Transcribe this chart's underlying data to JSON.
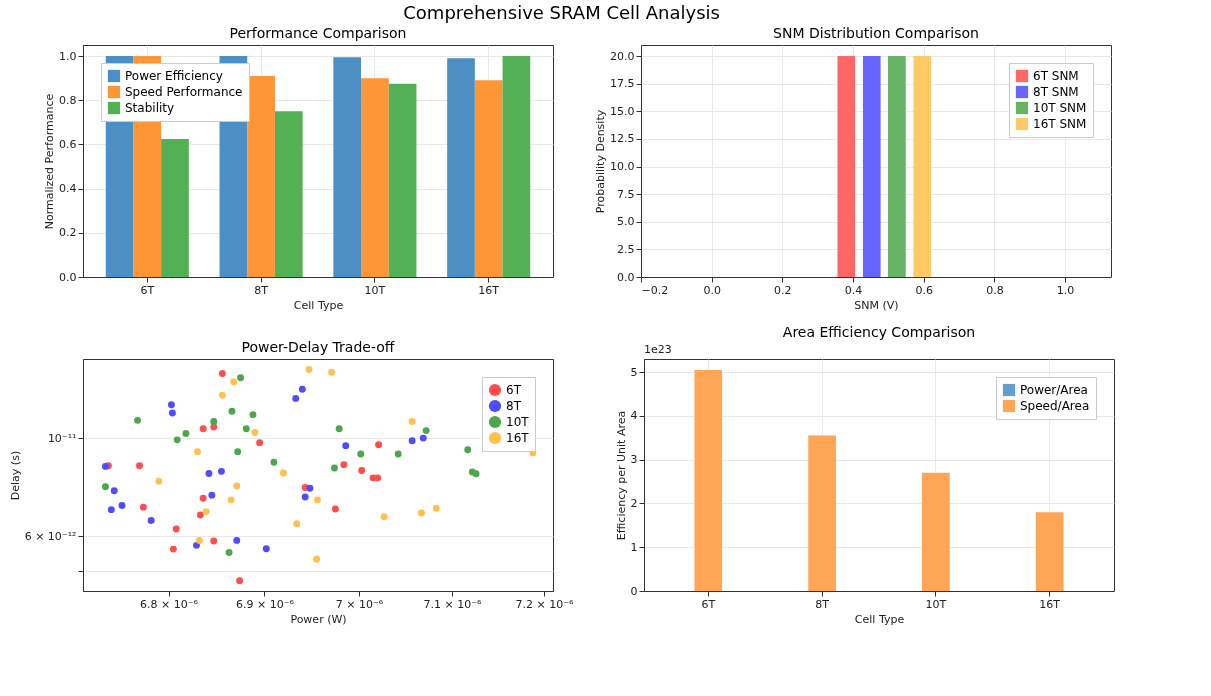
{
  "chart_data": [
    {
      "type": "bar",
      "title": "Performance Comparison",
      "xlabel": "Cell Type",
      "ylabel": "Normalized Performance",
      "categories": [
        "6T",
        "8T",
        "10T",
        "16T"
      ],
      "series": [
        {
          "name": "Power Efficiency",
          "color": "#4b8fc4",
          "values": [
            1.0,
            1.0,
            0.995,
            0.99
          ]
        },
        {
          "name": "Speed Performance",
          "color": "#fe9537",
          "values": [
            1.0,
            0.91,
            0.9,
            0.89
          ]
        },
        {
          "name": "Stability",
          "color": "#53b054",
          "values": [
            0.625,
            0.75,
            0.875,
            1.0
          ]
        }
      ],
      "ylim": [
        0,
        1.05
      ],
      "yticks": [
        {
          "value": 0,
          "label": "0.0"
        },
        0.2,
        0.4,
        0.6,
        0.8,
        {
          "value": 1,
          "label": "1.0"
        }
      ],
      "grid": true,
      "legend": "top left",
      "annotations": [
        "Comprehensive SRAM Cell Analysis"
      ]
    },
    {
      "type": "bar",
      "title": "SNM Distribution Comparison",
      "xlabel": "SNM (V)",
      "ylabel": "Probability Density",
      "series": [
        {
          "name": "6T SNM",
          "color": "#ff6666",
          "x": [
            0.381
          ],
          "values": [
            20
          ]
        },
        {
          "name": "8T SNM",
          "color": "#6666ff",
          "x": [
            0.453
          ],
          "values": [
            20
          ]
        },
        {
          "name": "10T SNM",
          "color": "#66b366",
          "x": [
            0.524
          ],
          "values": [
            20
          ]
        },
        {
          "name": "16T SNM",
          "color": "#ffc966",
          "x": [
            0.596
          ],
          "values": [
            20
          ]
        }
      ],
      "xlim": [
        -0.2,
        1.13
      ],
      "xticks": [
        {
          "value": -0.2,
          "label": "−0.2"
        },
        {
          "value": 0,
          "label": "0.0"
        },
        0.2,
        0.4,
        0.6,
        0.8,
        {
          "value": 1,
          "label": "1.0"
        }
      ],
      "ylim": [
        0,
        21
      ],
      "yticks": [
        {
          "value": 0,
          "label": "0.0"
        },
        2.5,
        {
          "value": 5,
          "label": "5.0"
        },
        7.5,
        {
          "value": 10,
          "label": "10.0"
        },
        12.5,
        {
          "value": 15,
          "label": "15.0"
        },
        17.5,
        {
          "value": 20,
          "label": "20.0"
        }
      ],
      "grid": true,
      "legend": "top right"
    },
    {
      "type": "scatter",
      "title": "Power-Delay Trade-off",
      "xlabel": "Power (W)",
      "ylabel": "Delay (s)",
      "log": "xy",
      "marker": "circle",
      "series": [
        {
          "name": "6T",
          "color": "#ff4d4d",
          "x": [
            6.738e-06,
            6.77e-06,
            6.856e-06,
            6.836e-06,
            6.847e-06,
            6.895e-06,
            6.774e-06,
            6.836e-06,
            6.833e-06,
            6.808e-06,
            6.805e-06,
            6.847e-06,
            6.874e-06,
            6.943e-06,
            6.984e-06,
            6.975e-06,
            7.003e-06,
            7.015e-06,
            7.02e-06,
            7.021e-06
          ],
          "values": [
            8.66e-12,
            8.66e-12,
            1.4e-11,
            1.05e-11,
            1.06e-11,
            9.76e-12,
            6.98e-12,
            7.31e-12,
            6.7e-12,
            6.23e-12,
            5.61e-12,
            5.85e-12,
            4.76e-12,
            7.73e-12,
            8.71e-12,
            6.91e-12,
            8.45e-12,
            8.13e-12,
            8.13e-12,
            9.66e-12
          ]
        },
        {
          "name": "8T",
          "color": "#4d4dff",
          "x": [
            6.735e-06,
            6.744e-06,
            6.741e-06,
            6.752e-06,
            6.782e-06,
            6.803e-06,
            6.804e-06,
            6.842e-06,
            6.855e-06,
            6.845e-06,
            6.829e-06,
            6.871e-06,
            6.902e-06,
            6.933e-06,
            6.94e-06,
            6.943e-06,
            6.948e-06,
            6.986e-06,
            7.057e-06,
            7.069e-06
          ],
          "values": [
            8.63e-12,
            7.6e-12,
            6.89e-12,
            7.04e-12,
            6.51e-12,
            1.19e-11,
            1.14e-11,
            8.32e-12,
            8.41e-12,
            7.43e-12,
            5.72e-12,
            5.87e-12,
            5.62e-12,
            1.23e-11,
            1.29e-11,
            7.36e-12,
            7.7e-12,
            9.61e-12,
            9.86e-12,
            1e-11
          ]
        },
        {
          "name": "10T",
          "color": "#4da64d",
          "x": [
            6.768e-06,
            6.735e-06,
            6.809e-06,
            6.818e-06,
            6.847e-06,
            6.866e-06,
            6.875e-06,
            6.872e-06,
            6.881e-06,
            6.888e-06,
            6.91e-06,
            6.863e-06,
            6.974e-06,
            6.979e-06,
            7.002e-06,
            7.042e-06,
            7.072e-06,
            7.117e-06,
            7.122e-06,
            7.126e-06
          ],
          "values": [
            1.097e-11,
            7.76e-12,
            9.91e-12,
            1.025e-11,
            1.09e-11,
            1.15e-11,
            1.37e-11,
            9.32e-12,
            1.05e-11,
            1.13e-11,
            8.82e-12,
            5.51e-12,
            8.56e-12,
            1.05e-11,
            9.21e-12,
            9.21e-12,
            1.04e-11,
            9.41e-12,
            8.38e-12,
            8.31e-12
          ]
        },
        {
          "name": "16T",
          "color": "#ffc04d",
          "x": [
            6.79e-06,
            6.83e-06,
            6.856e-06,
            6.868e-06,
            6.871e-06,
            6.865e-06,
            6.839e-06,
            6.832e-06,
            6.89e-06,
            6.92e-06,
            6.947e-06,
            6.971e-06,
            6.956e-06,
            6.934e-06,
            6.955e-06,
            7.027e-06,
            7.067e-06,
            7.083e-06,
            7.057e-06,
            7.188e-06
          ],
          "values": [
            7.99e-12,
            9.32e-12,
            1.25e-11,
            1.34e-11,
            7.79e-12,
            7.25e-12,
            6.82e-12,
            5.87e-12,
            1.03e-11,
            8.34e-12,
            1.43e-11,
            1.41e-11,
            7.25e-12,
            6.4e-12,
            5.32e-12,
            6.64e-12,
            6.77e-12,
            6.94e-12,
            1.09e-11,
            9.26e-12
          ]
        }
      ],
      "xlim": [
        6.712e-06,
        7.21e-06
      ],
      "xticks": [
        {
          "value": 6.8e-06,
          "label": "6.8 × 10⁻⁶"
        },
        {
          "value": 6.9e-06,
          "label": "6.9 × 10⁻⁶"
        },
        {
          "value": 7e-06,
          "label": "7 × 10⁻⁶"
        },
        {
          "value": 7.1e-06,
          "label": "7.1 × 10⁻⁶"
        },
        {
          "value": 7.2e-06,
          "label": "7.2 × 10⁻⁶"
        }
      ],
      "ylim": [
        4.51e-12,
        1.51e-11
      ],
      "yticks": [
        {
          "value": 5e-12,
          "label": null
        },
        {
          "value": 6e-12,
          "label": "6 × 10⁻¹²"
        },
        {
          "value": 1e-11,
          "label": "10⁻¹¹"
        }
      ],
      "grid": "y",
      "legend": "top right"
    },
    {
      "type": "bar",
      "title": "Area Efficiency Comparison",
      "xlabel": "Cell Type",
      "ylabel": "Efficiency per Unit Area",
      "categories": [
        "6T",
        "8T",
        "10T",
        "16T"
      ],
      "series": [
        {
          "name": "Power/Area",
          "color": "#62a0cb",
          "values": [
            0,
            0,
            0,
            0
          ]
        },
        {
          "name": "Speed/Area",
          "color": "#ffa556",
          "values": [
            5.05,
            3.55,
            2.7,
            1.8
          ]
        }
      ],
      "ylim": [
        0,
        5.3
      ],
      "yticks": [
        0,
        1,
        2,
        3,
        4,
        5
      ],
      "annotations": [
        "1e23"
      ],
      "grid": true,
      "legend": "top right"
    }
  ]
}
